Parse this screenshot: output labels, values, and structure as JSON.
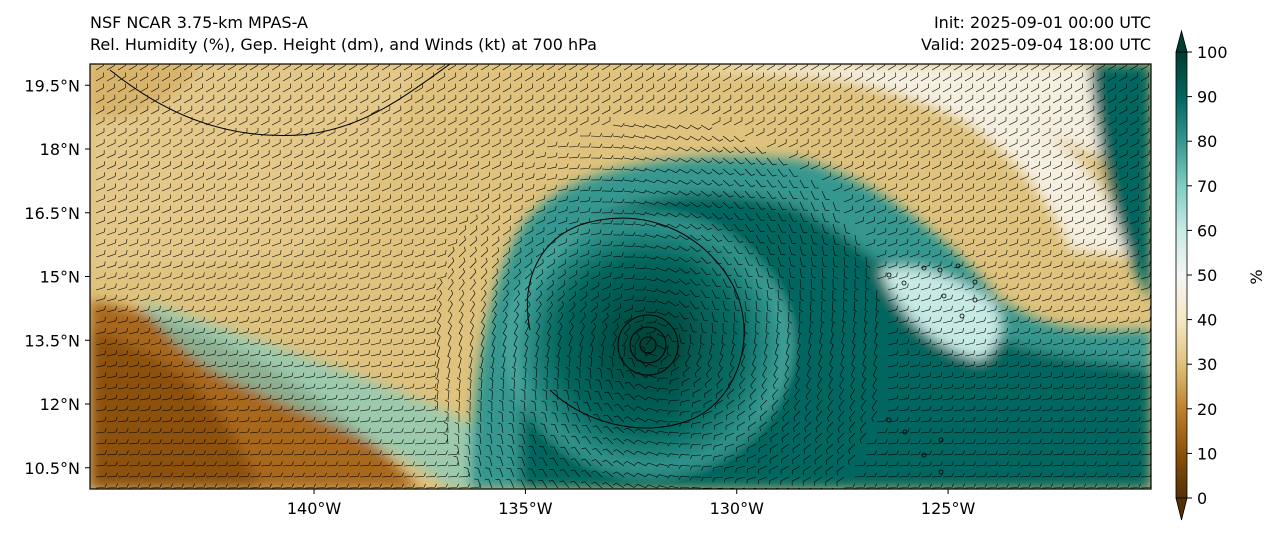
{
  "titles": {
    "left_line1": "NSF NCAR 3.75-km MPAS-A",
    "left_line2": "Rel. Humidity (%), Gep. Height (dm), and Winds (kt) at 700 hPa",
    "right_line1": "Init: 2025-09-01 00:00 UTC",
    "right_line2": "Valid: 2025-09-04 18:00 UTC"
  },
  "map": {
    "lon_range": [
      -145.3,
      -120.2
    ],
    "lat_range": [
      10.0,
      20.0
    ],
    "lat_ticks": [
      {
        "value": 19.5,
        "label": "19.5°N"
      },
      {
        "value": 18.0,
        "label": "18°N"
      },
      {
        "value": 16.5,
        "label": "16.5°N"
      },
      {
        "value": 15.0,
        "label": "15°N"
      },
      {
        "value": 13.5,
        "label": "13.5°N"
      },
      {
        "value": 12.0,
        "label": "12°N"
      },
      {
        "value": 10.5,
        "label": "10.5°N"
      }
    ],
    "lon_ticks": [
      {
        "value": -140,
        "label": "140°W"
      },
      {
        "value": -135,
        "label": "135°W"
      },
      {
        "value": -130,
        "label": "130°W"
      },
      {
        "value": -125,
        "label": "125°W"
      }
    ],
    "cyclone_center": {
      "lon": -131.9,
      "lat": 13.3
    }
  },
  "colorbar": {
    "label": "%",
    "ticks": [
      {
        "value": 0,
        "label": "0"
      },
      {
        "value": 10,
        "label": "10"
      },
      {
        "value": 20,
        "label": "20"
      },
      {
        "value": 30,
        "label": "30"
      },
      {
        "value": 40,
        "label": "40"
      },
      {
        "value": 50,
        "label": "50"
      },
      {
        "value": 60,
        "label": "60"
      },
      {
        "value": 70,
        "label": "70"
      },
      {
        "value": 80,
        "label": "80"
      },
      {
        "value": 90,
        "label": "90"
      },
      {
        "value": 100,
        "label": "100"
      }
    ],
    "colormap_stops": [
      "#543005",
      "#8c510a",
      "#bf812d",
      "#dfc27d",
      "#f6e8c3",
      "#f5f5f5",
      "#c7eae5",
      "#80cdc1",
      "#35978f",
      "#01665e",
      "#003c30"
    ]
  }
}
